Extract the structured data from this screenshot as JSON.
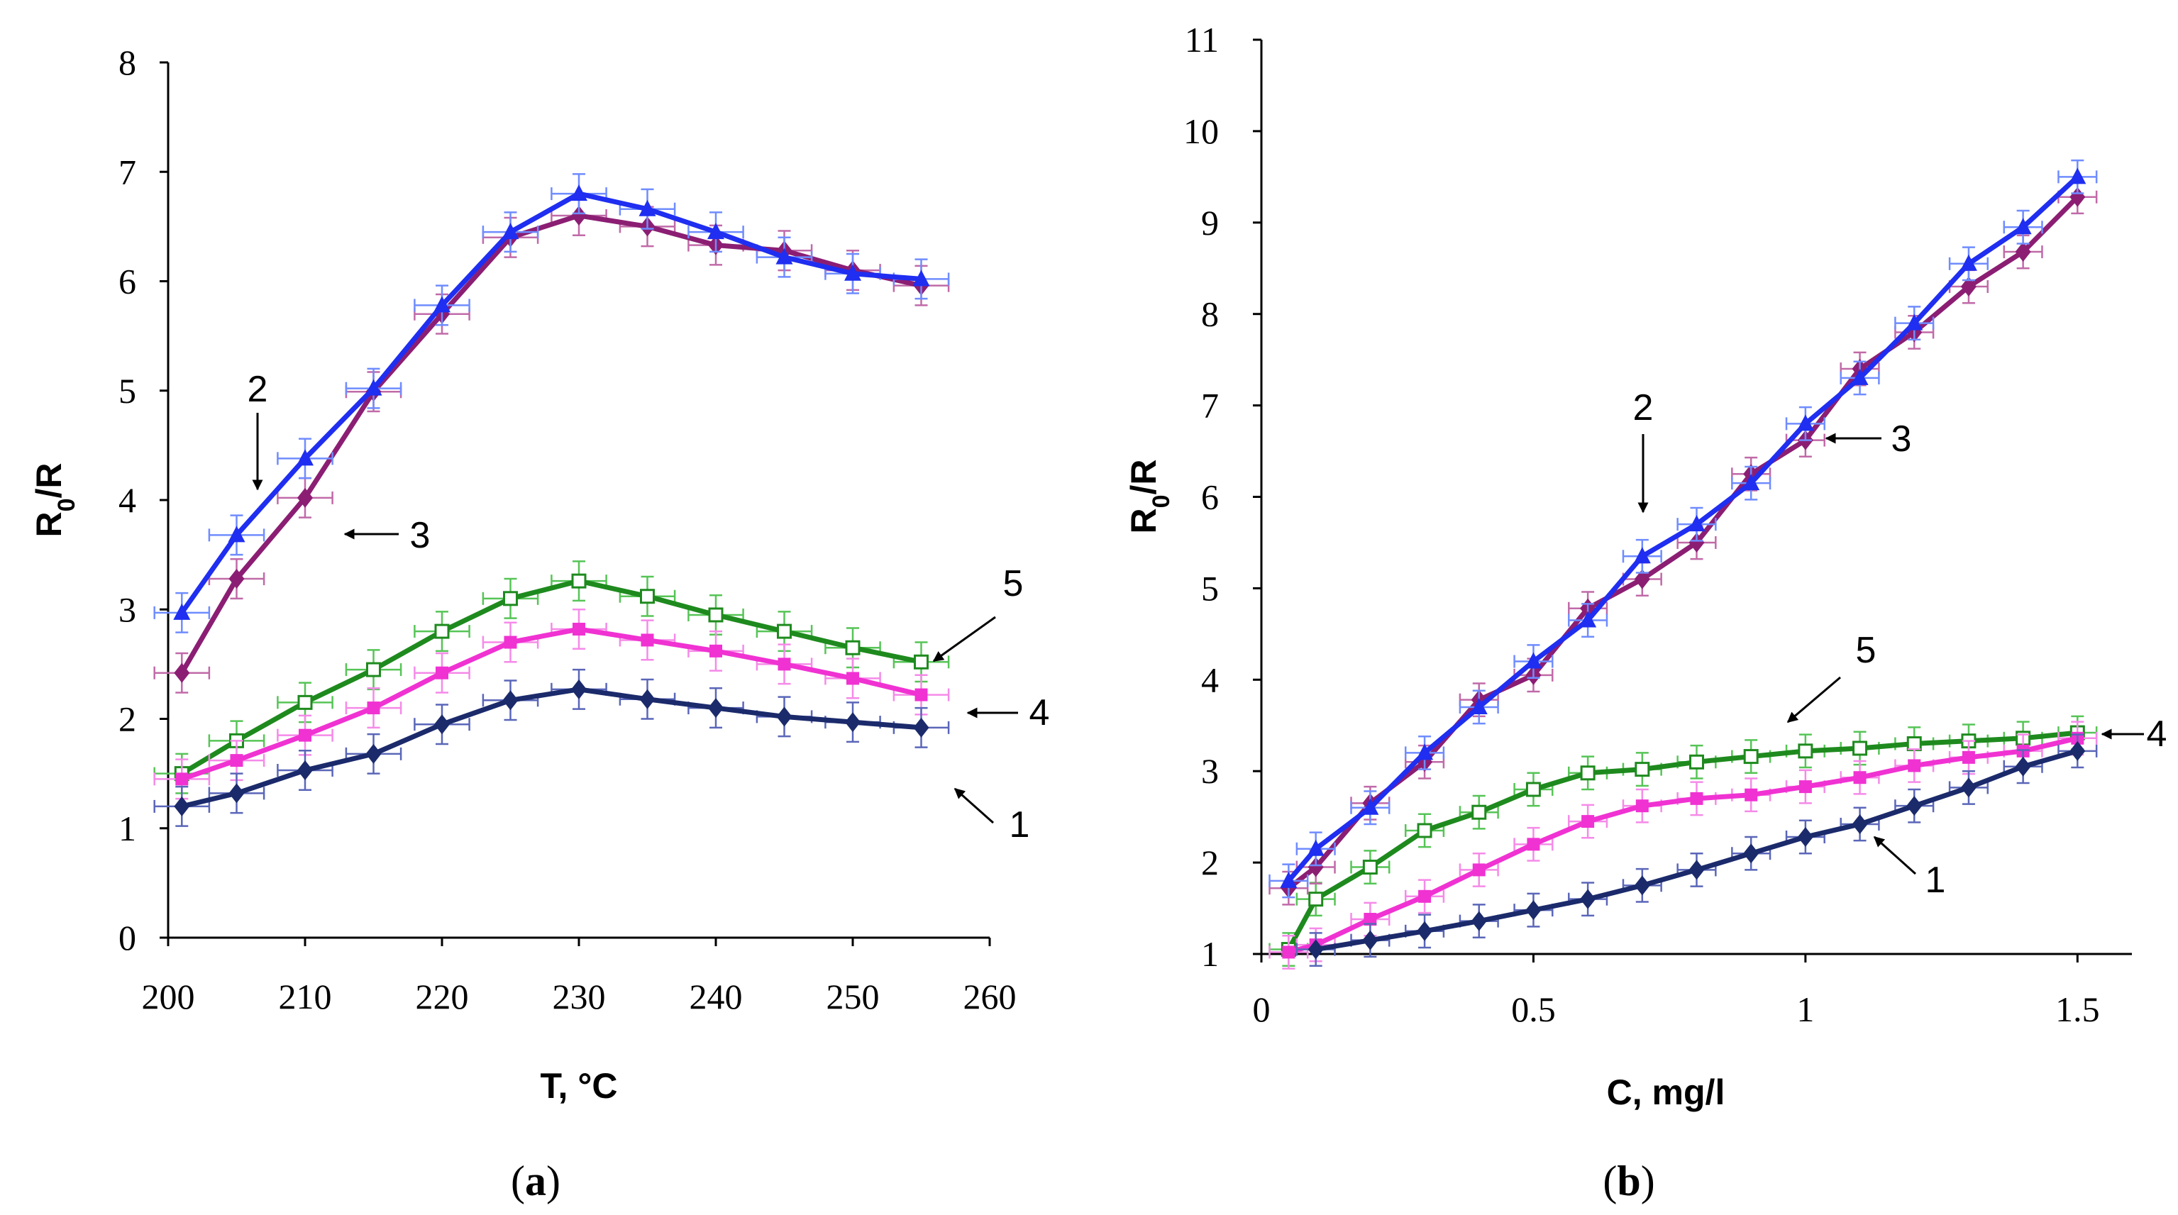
{
  "colors": {
    "s1": "#1b2a6b",
    "s2": "#1f2ef0",
    "s3": "#8b1e73",
    "s4": "#f032d2",
    "s5": "#1e8a1e",
    "err1": "#5a66b8",
    "err2": "#6f8cff",
    "err3": "#c06aa8",
    "err4": "#f58ae8",
    "err5": "#56c456"
  },
  "chart_data": [
    {
      "panel": "a",
      "type": "line",
      "caption": {
        "open": "(",
        "letter": "a",
        "close": ")"
      },
      "xlabel": "T, °C",
      "ylabel": {
        "main": "R",
        "sub": "0",
        "rest": "/R"
      },
      "xlim": [
        200,
        260
      ],
      "ylim": [
        0,
        8
      ],
      "xticks": [
        "200",
        "210",
        "220",
        "230",
        "240",
        "250",
        "260"
      ],
      "yticks": [
        "0",
        "1",
        "2",
        "3",
        "4",
        "5",
        "6",
        "7",
        "8"
      ],
      "x": [
        201,
        205,
        210,
        215,
        220,
        225,
        230,
        235,
        240,
        245,
        250,
        255
      ],
      "series": [
        {
          "name": "1",
          "marker": "diamond",
          "values": [
            1.2,
            1.32,
            1.53,
            1.68,
            1.95,
            2.17,
            2.27,
            2.18,
            2.1,
            2.02,
            1.97,
            1.92
          ]
        },
        {
          "name": "2",
          "marker": "triangle",
          "values": [
            2.97,
            3.68,
            4.38,
            5.02,
            5.78,
            6.45,
            6.8,
            6.66,
            6.45,
            6.22,
            6.07,
            6.02
          ]
        },
        {
          "name": "3",
          "marker": "diamond",
          "values": [
            2.42,
            3.28,
            4.02,
            4.99,
            5.7,
            6.4,
            6.6,
            6.5,
            6.33,
            6.28,
            6.1,
            5.96
          ]
        },
        {
          "name": "4",
          "marker": "square",
          "values": [
            1.45,
            1.62,
            1.85,
            2.1,
            2.42,
            2.7,
            2.82,
            2.72,
            2.62,
            2.5,
            2.37,
            2.22
          ]
        },
        {
          "name": "5",
          "marker": "open-square",
          "values": [
            1.5,
            1.8,
            2.15,
            2.45,
            2.8,
            3.1,
            3.26,
            3.12,
            2.95,
            2.8,
            2.65,
            2.52
          ]
        }
      ],
      "annotations": [
        {
          "text": "2",
          "target_series": "2"
        },
        {
          "text": "3",
          "target_series": "3"
        },
        {
          "text": "5",
          "target_series": "5"
        },
        {
          "text": "4",
          "target_series": "4"
        },
        {
          "text": "1",
          "target_series": "1"
        }
      ]
    },
    {
      "panel": "b",
      "type": "line",
      "caption": {
        "open": "(",
        "letter": "b",
        "close": ")"
      },
      "xlabel": "C, mg/l",
      "ylabel": {
        "main": "R",
        "sub": "0",
        "rest": "/R"
      },
      "xlim": [
        0,
        1.6
      ],
      "ylim": [
        1,
        11
      ],
      "xticks": [
        "0",
        "0.5",
        "1",
        "1.5"
      ],
      "xtick_values": [
        0,
        0.5,
        1,
        1.5
      ],
      "yticks": [
        "1",
        "2",
        "3",
        "4",
        "5",
        "6",
        "7",
        "8",
        "9",
        "10",
        "11"
      ],
      "series": [
        {
          "name": "1",
          "marker": "diamond",
          "x": [
            0.1,
            0.2,
            0.3,
            0.4,
            0.5,
            0.6,
            0.7,
            0.8,
            0.9,
            1.0,
            1.1,
            1.2,
            1.3,
            1.4,
            1.5
          ],
          "values": [
            1.05,
            1.15,
            1.25,
            1.36,
            1.48,
            1.6,
            1.75,
            1.92,
            2.1,
            2.28,
            2.42,
            2.62,
            2.82,
            3.05,
            3.22
          ]
        },
        {
          "name": "2",
          "marker": "triangle",
          "x": [
            0.05,
            0.1,
            0.2,
            0.3,
            0.4,
            0.5,
            0.6,
            0.7,
            0.8,
            0.9,
            1.0,
            1.1,
            1.2,
            1.3,
            1.4,
            1.5
          ],
          "values": [
            1.8,
            2.15,
            2.6,
            3.2,
            3.7,
            4.2,
            4.65,
            5.35,
            5.7,
            6.15,
            6.8,
            7.3,
            7.9,
            8.55,
            8.95,
            9.5
          ]
        },
        {
          "name": "3",
          "marker": "diamond",
          "x": [
            0.05,
            0.1,
            0.2,
            0.3,
            0.4,
            0.5,
            0.6,
            0.7,
            0.8,
            0.9,
            1.0,
            1.1,
            1.2,
            1.3,
            1.4,
            1.5
          ],
          "values": [
            1.72,
            1.95,
            2.65,
            3.1,
            3.78,
            4.05,
            4.78,
            5.1,
            5.5,
            6.25,
            6.62,
            7.4,
            7.8,
            8.3,
            8.68,
            9.28
          ]
        },
        {
          "name": "4",
          "marker": "square",
          "x": [
            0.05,
            0.1,
            0.2,
            0.3,
            0.4,
            0.5,
            0.6,
            0.7,
            0.8,
            0.9,
            1.0,
            1.1,
            1.2,
            1.3,
            1.4,
            1.5
          ],
          "values": [
            1.02,
            1.1,
            1.38,
            1.63,
            1.92,
            2.2,
            2.45,
            2.62,
            2.7,
            2.74,
            2.83,
            2.93,
            3.06,
            3.15,
            3.22,
            3.36
          ]
        },
        {
          "name": "5",
          "marker": "open-square",
          "x": [
            0.05,
            0.1,
            0.2,
            0.3,
            0.4,
            0.5,
            0.6,
            0.7,
            0.8,
            0.9,
            1.0,
            1.1,
            1.2,
            1.3,
            1.4,
            1.5
          ],
          "values": [
            1.05,
            1.6,
            1.95,
            2.35,
            2.55,
            2.8,
            2.98,
            3.02,
            3.1,
            3.16,
            3.22,
            3.25,
            3.3,
            3.33,
            3.36,
            3.42
          ]
        }
      ],
      "annotations": [
        {
          "text": "2",
          "target_series": "2"
        },
        {
          "text": "3",
          "target_series": "3"
        },
        {
          "text": "5",
          "target_series": "5"
        },
        {
          "text": "4",
          "target_series": "4"
        },
        {
          "text": "1",
          "target_series": "1"
        }
      ]
    }
  ]
}
